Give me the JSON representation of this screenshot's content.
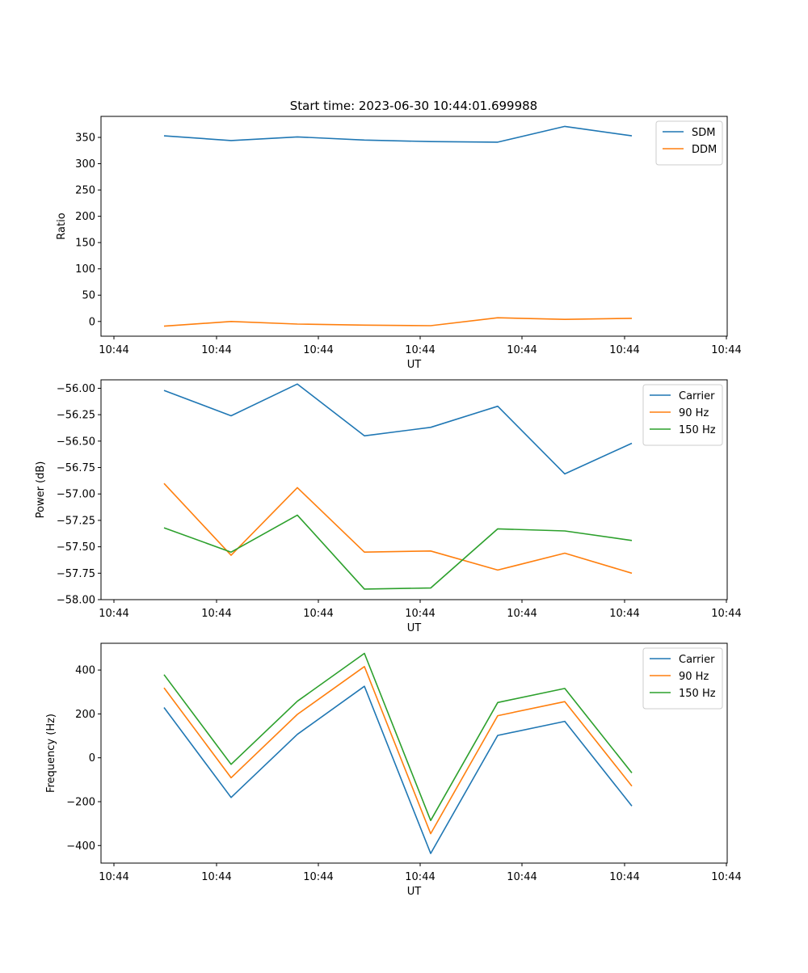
{
  "figure": {
    "title": "Start time: 2023-06-30 10:44:01.699988"
  },
  "colors": {
    "c0": "#1f77b4",
    "c1": "#ff7f0e",
    "c2": "#2ca02c"
  },
  "chart_data": [
    {
      "type": "line",
      "title": "Start time: 2023-06-30 10:44:01.699988",
      "xlabel": "UT",
      "ylabel": "Ratio",
      "x_tick_labels": [
        "10:44",
        "10:44",
        "10:44",
        "10:44",
        "10:44",
        "10:44",
        "10:44"
      ],
      "y_ticks": [
        0,
        50,
        100,
        150,
        200,
        250,
        300,
        350
      ],
      "ylim": [
        -28,
        390
      ],
      "legend": "top-right",
      "series": [
        {
          "name": "SDM",
          "color": "#1f77b4",
          "values": [
            353,
            344,
            351,
            345,
            342,
            341,
            371,
            353
          ]
        },
        {
          "name": "DDM",
          "color": "#ff7f0e",
          "values": [
            -9,
            0,
            -5,
            -7,
            -8,
            7,
            4,
            6
          ]
        }
      ]
    },
    {
      "type": "line",
      "title": "",
      "xlabel": "UT",
      "ylabel": "Power (dB)",
      "x_tick_labels": [
        "10:44",
        "10:44",
        "10:44",
        "10:44",
        "10:44",
        "10:44",
        "10:44"
      ],
      "y_ticks": [
        -58.0,
        -57.75,
        -57.5,
        -57.25,
        -57.0,
        -56.75,
        -56.5,
        -56.25,
        -56.0
      ],
      "y_tick_labels": [
        "−58.00",
        "−57.75",
        "−57.50",
        "−57.25",
        "−57.00",
        "−56.75",
        "−56.50",
        "−56.25",
        "−56.00"
      ],
      "ylim": [
        -58.0,
        -55.92
      ],
      "legend": "top-right",
      "series": [
        {
          "name": "Carrier",
          "color": "#1f77b4",
          "values": [
            -56.02,
            -56.26,
            -55.96,
            -56.45,
            -56.37,
            -56.17,
            -56.81,
            -56.52
          ]
        },
        {
          "name": "90 Hz",
          "color": "#ff7f0e",
          "values": [
            -56.9,
            -57.58,
            -56.94,
            -57.55,
            -57.54,
            -57.72,
            -57.56,
            -57.75
          ]
        },
        {
          "name": "150 Hz",
          "color": "#2ca02c",
          "values": [
            -57.32,
            -57.55,
            -57.2,
            -57.9,
            -57.89,
            -57.33,
            -57.35,
            -57.44
          ]
        }
      ]
    },
    {
      "type": "line",
      "title": "",
      "xlabel": "UT",
      "ylabel": "Frequency (Hz)",
      "x_tick_labels": [
        "10:44",
        "10:44",
        "10:44",
        "10:44",
        "10:44",
        "10:44",
        "10:44"
      ],
      "y_ticks": [
        -400,
        -200,
        0,
        200,
        400
      ],
      "y_tick_labels": [
        "−400",
        "−200",
        "0",
        "200",
        "400"
      ],
      "ylim": [
        -480,
        522
      ],
      "legend": "top-right",
      "series": [
        {
          "name": "Carrier",
          "color": "#1f77b4",
          "values": [
            229,
            -181,
            107,
            326,
            -436,
            102,
            166,
            -220
          ]
        },
        {
          "name": "90 Hz",
          "color": "#ff7f0e",
          "values": [
            319,
            -91,
            198,
            416,
            -346,
            192,
            256,
            -129
          ]
        },
        {
          "name": "150 Hz",
          "color": "#2ca02c",
          "values": [
            379,
            -30,
            258,
            476,
            -286,
            252,
            316,
            -69
          ]
        }
      ]
    }
  ]
}
